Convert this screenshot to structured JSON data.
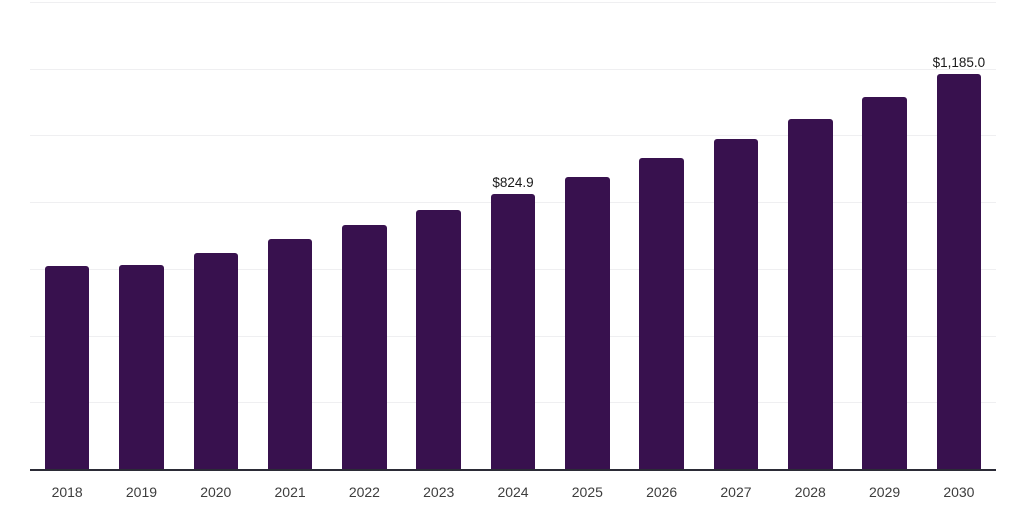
{
  "chart_data": {
    "type": "bar",
    "title": "",
    "xlabel": "",
    "ylabel": "",
    "categories": [
      "2018",
      "2019",
      "2020",
      "2021",
      "2022",
      "2023",
      "2024",
      "2025",
      "2026",
      "2027",
      "2028",
      "2029",
      "2030"
    ],
    "values": [
      609,
      612,
      649,
      690,
      731,
      778,
      824.9,
      876,
      931,
      989,
      1050,
      1116,
      1185
    ],
    "value_labels": [
      "",
      "",
      "",
      "",
      "",
      "",
      "$824.9",
      "",
      "",
      "",
      "",
      "",
      "$1,185.0"
    ],
    "ylim": [
      0,
      1400
    ],
    "gridline_step": 200,
    "grid": "horizontal",
    "y_tick_labels_visible": false,
    "legend_position": "none",
    "colors": {
      "bar": "#38114e",
      "axis_line": "#2b2b36",
      "gridline": "#efeff1",
      "value_label": "#1a1a1a",
      "tick_label": "#3d3d3d",
      "background": "#ffffff"
    }
  }
}
